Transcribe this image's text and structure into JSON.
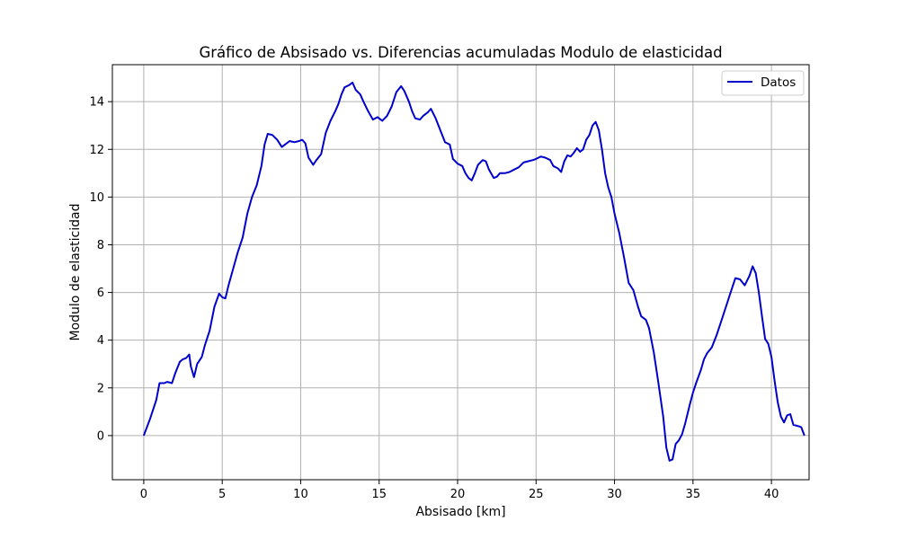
{
  "chart_data": {
    "type": "line",
    "title": "Gráfico de Absisado vs. Diferencias acumuladas Modulo de elasticidad",
    "xlabel": "Absisado [km]",
    "ylabel": "Modulo de elasticidad",
    "xlim": [
      -2.0,
      42.4
    ],
    "ylim": [
      -1.85,
      15.55
    ],
    "xticks": [
      0,
      5,
      10,
      15,
      20,
      25,
      30,
      35,
      40
    ],
    "yticks": [
      0,
      2,
      4,
      6,
      8,
      10,
      12,
      14
    ],
    "grid": true,
    "legend_position": "top-right",
    "series": [
      {
        "name": "Datos",
        "color": "#0000cc",
        "points": [
          [
            0.0,
            0.0
          ],
          [
            0.4,
            0.7
          ],
          [
            0.8,
            1.5
          ],
          [
            1.0,
            2.2
          ],
          [
            1.3,
            2.2
          ],
          [
            1.5,
            2.25
          ],
          [
            1.8,
            2.2
          ],
          [
            2.0,
            2.6
          ],
          [
            2.3,
            3.1
          ],
          [
            2.5,
            3.2
          ],
          [
            2.7,
            3.25
          ],
          [
            2.9,
            3.4
          ],
          [
            3.0,
            2.9
          ],
          [
            3.2,
            2.45
          ],
          [
            3.4,
            3.0
          ],
          [
            3.7,
            3.3
          ],
          [
            3.9,
            3.8
          ],
          [
            4.2,
            4.4
          ],
          [
            4.5,
            5.4
          ],
          [
            4.8,
            5.95
          ],
          [
            5.0,
            5.8
          ],
          [
            5.2,
            5.75
          ],
          [
            5.4,
            6.3
          ],
          [
            5.7,
            7.0
          ],
          [
            6.0,
            7.7
          ],
          [
            6.3,
            8.3
          ],
          [
            6.6,
            9.3
          ],
          [
            6.9,
            10.0
          ],
          [
            7.2,
            10.5
          ],
          [
            7.5,
            11.3
          ],
          [
            7.7,
            12.2
          ],
          [
            7.9,
            12.65
          ],
          [
            8.2,
            12.6
          ],
          [
            8.5,
            12.4
          ],
          [
            8.8,
            12.1
          ],
          [
            9.0,
            12.2
          ],
          [
            9.3,
            12.35
          ],
          [
            9.6,
            12.3
          ],
          [
            9.9,
            12.35
          ],
          [
            10.1,
            12.4
          ],
          [
            10.3,
            12.25
          ],
          [
            10.5,
            11.65
          ],
          [
            10.8,
            11.35
          ],
          [
            11.0,
            11.55
          ],
          [
            11.3,
            11.8
          ],
          [
            11.6,
            12.7
          ],
          [
            11.9,
            13.2
          ],
          [
            12.2,
            13.6
          ],
          [
            12.4,
            13.9
          ],
          [
            12.6,
            14.3
          ],
          [
            12.8,
            14.6
          ],
          [
            13.1,
            14.7
          ],
          [
            13.3,
            14.8
          ],
          [
            13.5,
            14.5
          ],
          [
            13.8,
            14.3
          ],
          [
            14.0,
            14.0
          ],
          [
            14.3,
            13.6
          ],
          [
            14.6,
            13.25
          ],
          [
            14.9,
            13.35
          ],
          [
            15.2,
            13.2
          ],
          [
            15.5,
            13.4
          ],
          [
            15.8,
            13.8
          ],
          [
            16.1,
            14.4
          ],
          [
            16.4,
            14.65
          ],
          [
            16.6,
            14.45
          ],
          [
            16.9,
            14.0
          ],
          [
            17.1,
            13.6
          ],
          [
            17.3,
            13.3
          ],
          [
            17.6,
            13.25
          ],
          [
            17.8,
            13.4
          ],
          [
            18.1,
            13.55
          ],
          [
            18.3,
            13.7
          ],
          [
            18.6,
            13.3
          ],
          [
            18.9,
            12.8
          ],
          [
            19.2,
            12.3
          ],
          [
            19.5,
            12.2
          ],
          [
            19.7,
            11.6
          ],
          [
            20.0,
            11.4
          ],
          [
            20.3,
            11.3
          ],
          [
            20.5,
            11.0
          ],
          [
            20.7,
            10.8
          ],
          [
            20.9,
            10.7
          ],
          [
            21.1,
            11.0
          ],
          [
            21.3,
            11.35
          ],
          [
            21.6,
            11.55
          ],
          [
            21.8,
            11.5
          ],
          [
            22.0,
            11.15
          ],
          [
            22.3,
            10.8
          ],
          [
            22.5,
            10.85
          ],
          [
            22.7,
            11.0
          ],
          [
            23.0,
            11.0
          ],
          [
            23.3,
            11.05
          ],
          [
            23.6,
            11.15
          ],
          [
            23.9,
            11.25
          ],
          [
            24.2,
            11.45
          ],
          [
            24.5,
            11.5
          ],
          [
            24.8,
            11.55
          ],
          [
            25.0,
            11.6
          ],
          [
            25.3,
            11.7
          ],
          [
            25.6,
            11.65
          ],
          [
            25.9,
            11.55
          ],
          [
            26.1,
            11.3
          ],
          [
            26.4,
            11.2
          ],
          [
            26.6,
            11.05
          ],
          [
            26.8,
            11.5
          ],
          [
            27.0,
            11.75
          ],
          [
            27.2,
            11.7
          ],
          [
            27.4,
            11.85
          ],
          [
            27.6,
            12.05
          ],
          [
            27.8,
            11.9
          ],
          [
            28.0,
            12.0
          ],
          [
            28.2,
            12.4
          ],
          [
            28.4,
            12.6
          ],
          [
            28.6,
            13.0
          ],
          [
            28.8,
            13.15
          ],
          [
            29.0,
            12.8
          ],
          [
            29.2,
            12.0
          ],
          [
            29.4,
            11.0
          ],
          [
            29.6,
            10.4
          ],
          [
            29.8,
            10.0
          ],
          [
            30.0,
            9.3
          ],
          [
            30.3,
            8.5
          ],
          [
            30.6,
            7.5
          ],
          [
            30.9,
            6.4
          ],
          [
            31.2,
            6.1
          ],
          [
            31.5,
            5.4
          ],
          [
            31.7,
            5.0
          ],
          [
            32.0,
            4.85
          ],
          [
            32.2,
            4.5
          ],
          [
            32.5,
            3.5
          ],
          [
            32.8,
            2.2
          ],
          [
            33.1,
            0.8
          ],
          [
            33.3,
            -0.5
          ],
          [
            33.5,
            -1.05
          ],
          [
            33.7,
            -1.0
          ],
          [
            33.9,
            -0.35
          ],
          [
            34.1,
            -0.2
          ],
          [
            34.3,
            0.05
          ],
          [
            34.5,
            0.5
          ],
          [
            34.8,
            1.3
          ],
          [
            35.0,
            1.8
          ],
          [
            35.2,
            2.2
          ],
          [
            35.5,
            2.75
          ],
          [
            35.7,
            3.2
          ],
          [
            35.9,
            3.45
          ],
          [
            36.2,
            3.7
          ],
          [
            36.5,
            4.2
          ],
          [
            36.8,
            4.8
          ],
          [
            37.1,
            5.4
          ],
          [
            37.4,
            6.0
          ],
          [
            37.7,
            6.6
          ],
          [
            38.0,
            6.55
          ],
          [
            38.3,
            6.3
          ],
          [
            38.6,
            6.7
          ],
          [
            38.8,
            7.1
          ],
          [
            39.0,
            6.8
          ],
          [
            39.2,
            6.0
          ],
          [
            39.4,
            5.0
          ],
          [
            39.6,
            4.05
          ],
          [
            39.8,
            3.85
          ],
          [
            40.0,
            3.3
          ],
          [
            40.2,
            2.3
          ],
          [
            40.4,
            1.4
          ],
          [
            40.6,
            0.8
          ],
          [
            40.8,
            0.55
          ],
          [
            41.0,
            0.85
          ],
          [
            41.2,
            0.9
          ],
          [
            41.4,
            0.45
          ],
          [
            41.7,
            0.4
          ],
          [
            41.9,
            0.35
          ],
          [
            42.1,
            0.0
          ]
        ]
      }
    ]
  }
}
